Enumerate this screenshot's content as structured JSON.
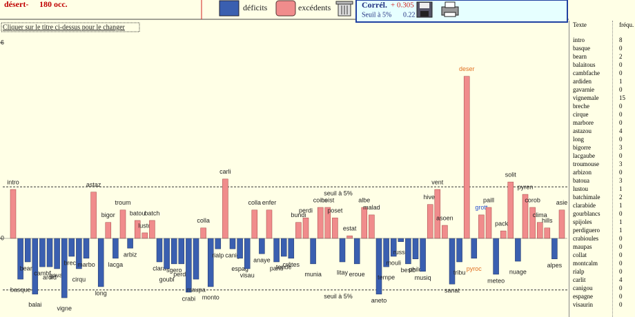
{
  "header": {
    "title": "désert-",
    "occ": "180 occ.",
    "legend_deficit": "déficits",
    "legend_excess": "excédents",
    "correl_label": "Corrél.",
    "correl_value": "+ 0.305",
    "seuil_label": "Seuil à 5%",
    "seuil_value": "0.22",
    "hint": "Cliquer sur le titre ci-dessus pour le changer"
  },
  "chart_data": {
    "type": "bar",
    "categories": [
      "intro",
      "basque",
      "bearn",
      "balai",
      "cambf",
      "ardid",
      "gavar",
      "vigne",
      "brech",
      "cirqu",
      "marbo",
      "astaz",
      "long",
      "bigor",
      "lacga",
      "troum",
      "arbiz",
      "batou",
      "lusto",
      "batch",
      "clara",
      "goubl",
      "sgero",
      "perdg",
      "crabi",
      "maupa",
      "colla",
      "monto",
      "rialp",
      "carli",
      "canig",
      "espag",
      "visau",
      "colla",
      "anaye",
      "enfer",
      "panti",
      "tende",
      "crêtes",
      "bundi",
      "perdi",
      "munia",
      "coins",
      "beist",
      "poset",
      "litay",
      "estat",
      "eroue",
      "albe",
      "malad",
      "aneto",
      "tempe",
      "mouli",
      "russe",
      "besib",
      "philo",
      "musiq",
      "hiver",
      "vent",
      "asoen",
      "sanat",
      "tribu",
      "deser",
      "pyroc",
      "grott",
      "paill",
      "meteo",
      "packe",
      "solit",
      "nuage",
      "pyren",
      "corob",
      "clima",
      "hills",
      "alpes",
      "asie"
    ],
    "values": [
      1.5,
      -1.25,
      -0.72,
      -1.71,
      -0.87,
      -0.87,
      -0.93,
      -1.82,
      -0.55,
      -0.93,
      -0.61,
      1.42,
      -1.48,
      0.49,
      -0.61,
      0.87,
      -0.3,
      0.55,
      0.17,
      0.55,
      -0.72,
      -0.93,
      -0.78,
      -0.78,
      -1.65,
      -1.25,
      0.32,
      -1.48,
      -0.32,
      1.82,
      -0.32,
      -0.61,
      -0.93,
      0.87,
      -0.47,
      0.87,
      -0.72,
      -0.55,
      -0.61,
      0.49,
      0.63,
      -0.78,
      0.95,
      0.95,
      0.63,
      -0.72,
      0.08,
      -0.78,
      0.95,
      0.72,
      -1.71,
      -0.87,
      -0.55,
      -0.1,
      -0.78,
      -0.63,
      -1.01,
      1.04,
      1.5,
      0.4,
      -1.4,
      -0.72,
      4.97,
      -0.61,
      0.72,
      0.95,
      -1.1,
      0.23,
      1.73,
      -0.7,
      1.35,
      0.95,
      0.49,
      0.32,
      -0.63,
      0.87
    ],
    "colors": {
      "positive": "#f08c8c",
      "negative": "#3a5fb0"
    },
    "label_colors": {
      "deser": "#e07020",
      "pyroc": "#e07020",
      "grott": "#2850d0"
    },
    "thresholds": [
      1.58,
      -1.58
    ],
    "threshold_labels": [
      "seuil à 5%",
      "seuil à 5%"
    ],
    "ylim": [
      -2.41,
      6
    ],
    "yticks": [
      6,
      0
    ]
  },
  "table": {
    "headers": [
      "Texte",
      "fréqu."
    ],
    "rows": [
      [
        "intro",
        8
      ],
      [
        "basque",
        0
      ],
      [
        "bearn",
        2
      ],
      [
        "balaitous",
        0
      ],
      [
        "cambfache",
        0
      ],
      [
        "ardiden",
        1
      ],
      [
        "gavarnie",
        0
      ],
      [
        "vignemale",
        15
      ],
      [
        "breche",
        0
      ],
      [
        "cirque",
        0
      ],
      [
        "marbore",
        0
      ],
      [
        "astazou",
        4
      ],
      [
        "long",
        0
      ],
      [
        "bigorre",
        3
      ],
      [
        "lacgaube",
        0
      ],
      [
        "troumouse",
        3
      ],
      [
        "arbizon",
        0
      ],
      [
        "batoua",
        3
      ],
      [
        "lustou",
        1
      ],
      [
        "batchimale",
        2
      ],
      [
        "clarabide",
        1
      ],
      [
        "gourblancs",
        0
      ],
      [
        "spijoles",
        1
      ],
      [
        "perdiguero",
        1
      ],
      [
        "crabioules",
        0
      ],
      [
        "maupas",
        0
      ],
      [
        "collat",
        0
      ],
      [
        "montcalm",
        0
      ],
      [
        "rialp",
        0
      ],
      [
        "carlit",
        4
      ],
      [
        "canigou",
        0
      ],
      [
        "espagne",
        0
      ],
      [
        "visaurin",
        0
      ]
    ]
  }
}
